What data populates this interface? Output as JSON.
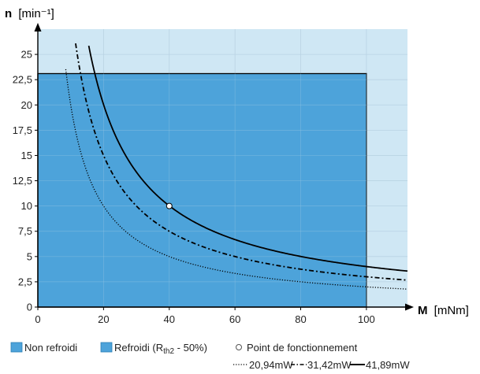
{
  "chart_data": {
    "type": "line",
    "y_axis_label": {
      "symbol": "n",
      "unit": "[min⁻¹]"
    },
    "x_axis_label": {
      "symbol": "M",
      "unit": "[mNm]"
    },
    "xlim": [
      0,
      112.5
    ],
    "ylim": [
      0,
      27.5
    ],
    "x_ticks": [
      "0",
      "20",
      "40",
      "60",
      "80",
      "100"
    ],
    "x_tick_values": [
      0,
      20,
      40,
      60,
      80,
      100
    ],
    "y_ticks": [
      "0",
      "2,5",
      "5",
      "7,5",
      "10",
      "12,5",
      "15",
      "17,5",
      "20",
      "22,5",
      "25"
    ],
    "y_tick_values": [
      0,
      2.5,
      5,
      7.5,
      10,
      12.5,
      15,
      17.5,
      20,
      22.5,
      25
    ],
    "grid": true,
    "regions": [
      {
        "name": "Non refroidi",
        "color": "#4da3da",
        "x": [
          0,
          100
        ],
        "y": [
          0,
          23.1
        ]
      },
      {
        "name": "Refroidi (Rth2 - 50%)",
        "color": "#cfe7f4",
        "x": [
          0,
          112.5
        ],
        "y": [
          0,
          27.5
        ]
      }
    ],
    "operating_point": {
      "name": "Point de fonctionnement",
      "x": 40,
      "y": 10
    },
    "series": [
      {
        "name": "20,94mW",
        "style": "dotted",
        "power_mW": 20.94,
        "x": [
          8.5,
          10,
          12.5,
          15,
          20,
          30,
          40,
          60,
          80,
          100,
          112.5
        ],
        "y": [
          23.5,
          20,
          16,
          13.3,
          10,
          6.7,
          5,
          3.3,
          2.5,
          2.0,
          1.8
        ]
      },
      {
        "name": "31,42mW",
        "style": "dashed",
        "power_mW": 31.42,
        "x": [
          11.5,
          12.5,
          15,
          20,
          30,
          40,
          60,
          80,
          100,
          112.5
        ],
        "y": [
          26.1,
          24,
          20,
          15,
          10,
          7.5,
          5,
          3.75,
          3.0,
          2.67
        ]
      },
      {
        "name": "41,89mW",
        "style": "solid",
        "power_mW": 41.89,
        "x": [
          15.5,
          17.5,
          20,
          30,
          40,
          60,
          80,
          100,
          112.5
        ],
        "y": [
          25.8,
          22.9,
          20,
          13.3,
          10,
          6.7,
          5,
          4.0,
          3.56
        ]
      }
    ]
  },
  "legend": {
    "non_cooled": "Non refroidi",
    "cooled_main": "Refroidi (R",
    "cooled_sub": "th2",
    "cooled_tail": " - 50%)",
    "operating_point": "Point de fonctionnement",
    "line_dotted": "20,94mW",
    "line_dashed": "31,42mW",
    "line_solid": "41,89mW"
  },
  "colors": {
    "non_cooled": "#4da3da",
    "cooled": "#cfe7f4",
    "grid": "#b9d3e3",
    "curves": "#000000",
    "axes": "#000000"
  }
}
